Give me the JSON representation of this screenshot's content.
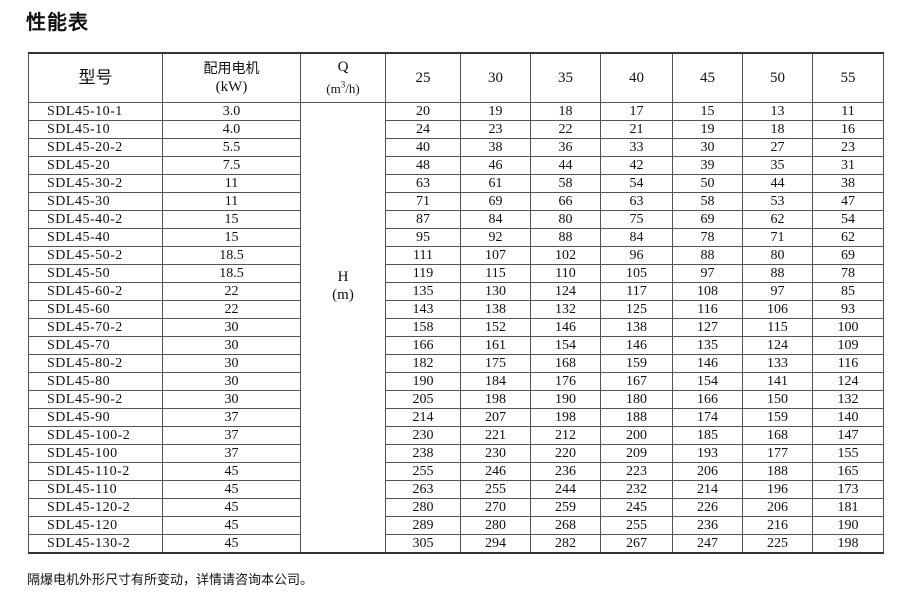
{
  "title": "性能表",
  "header": {
    "model": "型号",
    "motor_label": "配用电机",
    "motor_unit": "(kW)",
    "q_label": "Q",
    "q_unit_pre": "(m",
    "q_unit_sup": "3",
    "q_unit_post": "/h)",
    "h_label": "H",
    "h_unit": "(m)",
    "flows": [
      "25",
      "30",
      "35",
      "40",
      "45",
      "50",
      "55"
    ]
  },
  "rows": [
    {
      "model": "SDL45-10-1",
      "kw": "3.0",
      "h": [
        "20",
        "19",
        "18",
        "17",
        "15",
        "13",
        "11"
      ]
    },
    {
      "model": "SDL45-10",
      "kw": "4.0",
      "h": [
        "24",
        "23",
        "22",
        "21",
        "19",
        "18",
        "16"
      ]
    },
    {
      "model": "SDL45-20-2",
      "kw": "5.5",
      "h": [
        "40",
        "38",
        "36",
        "33",
        "30",
        "27",
        "23"
      ]
    },
    {
      "model": "SDL45-20",
      "kw": "7.5",
      "h": [
        "48",
        "46",
        "44",
        "42",
        "39",
        "35",
        "31"
      ]
    },
    {
      "model": "SDL45-30-2",
      "kw": "11",
      "h": [
        "63",
        "61",
        "58",
        "54",
        "50",
        "44",
        "38"
      ]
    },
    {
      "model": "SDL45-30",
      "kw": "11",
      "h": [
        "71",
        "69",
        "66",
        "63",
        "58",
        "53",
        "47"
      ]
    },
    {
      "model": "SDL45-40-2",
      "kw": "15",
      "h": [
        "87",
        "84",
        "80",
        "75",
        "69",
        "62",
        "54"
      ]
    },
    {
      "model": "SDL45-40",
      "kw": "15",
      "h": [
        "95",
        "92",
        "88",
        "84",
        "78",
        "71",
        "62"
      ]
    },
    {
      "model": "SDL45-50-2",
      "kw": "18.5",
      "h": [
        "111",
        "107",
        "102",
        "96",
        "88",
        "80",
        "69"
      ]
    },
    {
      "model": "SDL45-50",
      "kw": "18.5",
      "h": [
        "119",
        "115",
        "110",
        "105",
        "97",
        "88",
        "78"
      ]
    },
    {
      "model": "SDL45-60-2",
      "kw": "22",
      "h": [
        "135",
        "130",
        "124",
        "117",
        "108",
        "97",
        "85"
      ]
    },
    {
      "model": "SDL45-60",
      "kw": "22",
      "h": [
        "143",
        "138",
        "132",
        "125",
        "116",
        "106",
        "93"
      ]
    },
    {
      "model": "SDL45-70-2",
      "kw": "30",
      "h": [
        "158",
        "152",
        "146",
        "138",
        "127",
        "115",
        "100"
      ]
    },
    {
      "model": "SDL45-70",
      "kw": "30",
      "h": [
        "166",
        "161",
        "154",
        "146",
        "135",
        "124",
        "109"
      ]
    },
    {
      "model": "SDL45-80-2",
      "kw": "30",
      "h": [
        "182",
        "175",
        "168",
        "159",
        "146",
        "133",
        "116"
      ]
    },
    {
      "model": "SDL45-80",
      "kw": "30",
      "h": [
        "190",
        "184",
        "176",
        "167",
        "154",
        "141",
        "124"
      ]
    },
    {
      "model": "SDL45-90-2",
      "kw": "30",
      "h": [
        "205",
        "198",
        "190",
        "180",
        "166",
        "150",
        "132"
      ]
    },
    {
      "model": "SDL45-90",
      "kw": "37",
      "h": [
        "214",
        "207",
        "198",
        "188",
        "174",
        "159",
        "140"
      ]
    },
    {
      "model": "SDL45-100-2",
      "kw": "37",
      "h": [
        "230",
        "221",
        "212",
        "200",
        "185",
        "168",
        "147"
      ]
    },
    {
      "model": "SDL45-100",
      "kw": "37",
      "h": [
        "238",
        "230",
        "220",
        "209",
        "193",
        "177",
        "155"
      ]
    },
    {
      "model": "SDL45-110-2",
      "kw": "45",
      "h": [
        "255",
        "246",
        "236",
        "223",
        "206",
        "188",
        "165"
      ]
    },
    {
      "model": "SDL45-110",
      "kw": "45",
      "h": [
        "263",
        "255",
        "244",
        "232",
        "214",
        "196",
        "173"
      ]
    },
    {
      "model": "SDL45-120-2",
      "kw": "45",
      "h": [
        "280",
        "270",
        "259",
        "245",
        "226",
        "206",
        "181"
      ]
    },
    {
      "model": "SDL45-120",
      "kw": "45",
      "h": [
        "289",
        "280",
        "268",
        "255",
        "236",
        "216",
        "190"
      ]
    },
    {
      "model": "SDL45-130-2",
      "kw": "45",
      "h": [
        "305",
        "294",
        "282",
        "267",
        "247",
        "225",
        "198"
      ]
    }
  ],
  "note": "隔爆电机外形尺寸有所变动，详情请咨询本公司。"
}
